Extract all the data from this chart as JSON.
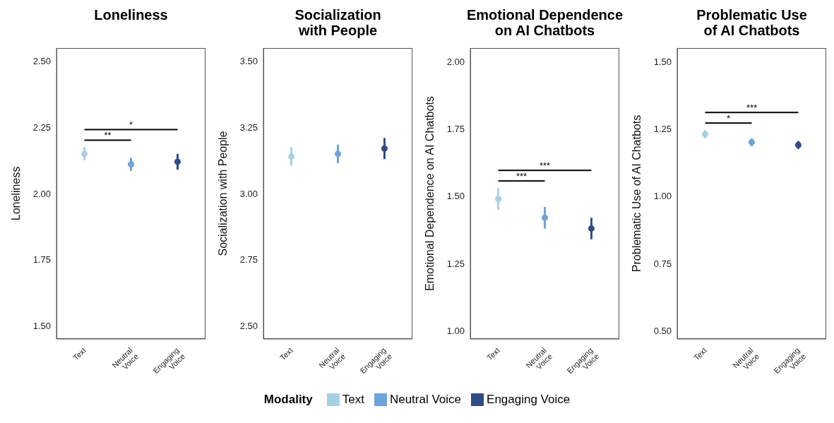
{
  "chart_data": [
    {
      "type": "scatter",
      "title": "Loneliness",
      "ylabel": "Loneliness",
      "categories": [
        "Text",
        "Neutral Voice",
        "Engaging Voice"
      ],
      "ylim": [
        1.45,
        2.55
      ],
      "yticks": [
        {
          "value": 1.5,
          "label": "1.50"
        },
        {
          "value": 1.75,
          "label": "1.75"
        },
        {
          "value": 2.0,
          "label": "2.00"
        },
        {
          "value": 2.25,
          "label": "2.25"
        },
        {
          "value": 2.5,
          "label": "2.50"
        }
      ],
      "grid": false,
      "marker": "circle",
      "legend": "bottom",
      "legend_title": "Modality",
      "series": [
        {
          "name": "Text",
          "color": "#a8d0e3",
          "values": [
            2.15,
            null,
            null
          ],
          "errors": [
            0.025,
            null,
            null
          ]
        },
        {
          "name": "Neutral Voice",
          "color": "#6fa3da",
          "values": [
            null,
            2.11,
            null
          ],
          "errors": [
            null,
            0.025,
            null
          ]
        },
        {
          "name": "Engaging Voice",
          "color": "#2f4c85",
          "values": [
            null,
            null,
            2.12
          ],
          "errors": [
            null,
            null,
            0.03
          ]
        }
      ],
      "annotations": [
        "*",
        "**"
      ]
    },
    {
      "type": "scatter",
      "title": "Socialization with People",
      "ylabel": "Socialization with People",
      "categories": [
        "Text",
        "Neutral Voice",
        "Engaging Voice"
      ],
      "ylim": [
        2.45,
        3.55
      ],
      "yticks": [
        {
          "value": 2.5,
          "label": "2.50"
        },
        {
          "value": 2.75,
          "label": "2.75"
        },
        {
          "value": 3.0,
          "label": "3.00"
        },
        {
          "value": 3.25,
          "label": "3.25"
        },
        {
          "value": 3.5,
          "label": "3.50"
        }
      ],
      "grid": false,
      "marker": "circle",
      "series": [
        {
          "color": "#a8d0e3",
          "values": [
            3.14,
            null,
            null
          ],
          "errors": [
            0.035,
            null,
            null
          ]
        },
        {
          "color": "#6fa3da",
          "values": [
            null,
            3.15,
            null
          ],
          "errors": [
            null,
            0.035,
            null
          ]
        },
        {
          "color": "#2f4c85",
          "values": [
            null,
            null,
            3.17
          ],
          "errors": [
            null,
            null,
            0.04
          ]
        }
      ]
    },
    {
      "type": "scatter",
      "title": "Emotional Dependence on AI Chatbots",
      "ylabel": "Emotional Dependence on AI Chatbots",
      "categories": [
        "Text",
        "Neutral Voice",
        "Engaging Voice"
      ],
      "ylim": [
        0.97,
        2.05
      ],
      "yticks": [
        {
          "value": 1.0,
          "label": "1.00"
        },
        {
          "value": 1.25,
          "label": "1.25"
        },
        {
          "value": 1.5,
          "label": "1.50"
        },
        {
          "value": 1.75,
          "label": "1.75"
        },
        {
          "value": 2.0,
          "label": "2.00"
        }
      ],
      "grid": false,
      "marker": "circle",
      "series": [
        {
          "color": "#a8d0e3",
          "values": [
            1.49,
            null,
            null
          ],
          "errors": [
            0.04,
            null,
            null
          ]
        },
        {
          "color": "#6fa3da",
          "values": [
            null,
            1.42,
            null
          ],
          "errors": [
            null,
            0.04,
            null
          ]
        },
        {
          "color": "#2f4c85",
          "values": [
            null,
            null,
            1.38
          ],
          "errors": [
            null,
            null,
            0.04
          ]
        }
      ],
      "annotations": [
        "***",
        "***"
      ]
    },
    {
      "type": "scatter",
      "title": "Problematic Use of AI Chatbots",
      "ylabel": "Problematic Use of AI Chatbots",
      "categories": [
        "Text",
        "Neutral Voice",
        "Engaging Voice"
      ],
      "ylim": [
        0.47,
        1.55
      ],
      "yticks": [
        {
          "value": 0.5,
          "label": "0.50"
        },
        {
          "value": 0.75,
          "label": "0.75"
        },
        {
          "value": 1.0,
          "label": "1.00"
        },
        {
          "value": 1.25,
          "label": "1.25"
        },
        {
          "value": 1.5,
          "label": "1.50"
        }
      ],
      "grid": false,
      "marker": "circle",
      "series": [
        {
          "color": "#a8d0e3",
          "values": [
            1.23,
            null,
            null
          ],
          "errors": [
            0.015,
            null,
            null
          ]
        },
        {
          "color": "#6fa3da",
          "values": [
            null,
            1.2,
            null
          ],
          "errors": [
            null,
            0.015,
            null
          ]
        },
        {
          "color": "#2f4c85",
          "values": [
            null,
            null,
            1.19
          ],
          "errors": [
            null,
            null,
            0.015
          ]
        }
      ],
      "annotations": [
        "***",
        "*"
      ]
    }
  ]
}
